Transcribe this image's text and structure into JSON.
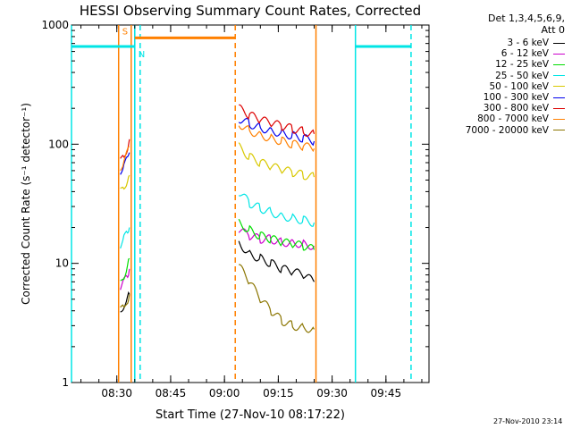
{
  "chart_data": {
    "type": "line",
    "title": "HESSI Observing Summary Count Rates, Corrected",
    "xlabel": "Start Time (27-Nov-10 08:17:22)",
    "ylabel": "Corrected Count Rate (s⁻¹ detector⁻¹)",
    "yscale": "log",
    "ylim": [
      1,
      1000
    ],
    "xlim": [
      "08:17:22",
      "09:57:00"
    ],
    "x_ticks": [
      "08:30",
      "08:45",
      "09:00",
      "09:15",
      "09:30",
      "09:45"
    ],
    "y_ticks": [
      "1",
      "10",
      "100",
      "1000"
    ],
    "legend_header": [
      "Det 1,3,4,5,6,9,",
      "Att 0"
    ],
    "legend_position": "outside-right",
    "grid": false,
    "series": [
      {
        "name": "3 - 6 keV",
        "color": "#000000",
        "segments": [
          {
            "x": [
              "08:31:00",
              "08:32:00",
              "08:33:00",
              "08:33:30"
            ],
            "y": [
              4.0,
              4.5,
              5.0,
              5.5
            ]
          },
          {
            "x": [
              "09:04:00",
              "09:07:00",
              "09:10:00",
              "09:13:00",
              "09:16:00",
              "09:19:00",
              "09:22:00",
              "09:25:00"
            ],
            "y": [
              15,
              12,
              11,
              10,
              9.0,
              8.5,
              8.0,
              7.0
            ]
          }
        ]
      },
      {
        "name": "6 - 12 keV",
        "color": "#cc00cc",
        "segments": [
          {
            "x": [
              "08:31:00",
              "08:32:00",
              "08:33:00",
              "08:33:30"
            ],
            "y": [
              6.0,
              7.0,
              8.0,
              9.0
            ]
          },
          {
            "x": [
              "09:04:00",
              "09:07:00",
              "09:10:00",
              "09:13:00",
              "09:16:00",
              "09:19:00",
              "09:22:00",
              "09:25:00"
            ],
            "y": [
              19,
              17,
              16,
              16,
              15,
              15,
              14.5,
              14
            ]
          }
        ]
      },
      {
        "name": "12 - 25 keV",
        "color": "#00dd00",
        "segments": [
          {
            "x": [
              "08:31:00",
              "08:32:00",
              "08:33:00",
              "08:33:30"
            ],
            "y": [
              7.0,
              8.0,
              9.5,
              11
            ]
          },
          {
            "x": [
              "09:04:00",
              "09:07:00",
              "09:10:00",
              "09:13:00",
              "09:16:00",
              "09:19:00",
              "09:22:00",
              "09:25:00"
            ],
            "y": [
              22,
              19,
              17,
              16,
              15,
              14.5,
              14,
              13
            ]
          }
        ]
      },
      {
        "name": "25 - 50 keV",
        "color": "#00e5e5",
        "segments": [
          {
            "x": [
              "08:31:00",
              "08:32:00",
              "08:33:00",
              "08:33:30"
            ],
            "y": [
              14,
              16,
              18,
              20
            ]
          },
          {
            "x": [
              "09:04:00",
              "09:07:00",
              "09:10:00",
              "09:13:00",
              "09:16:00",
              "09:19:00",
              "09:22:00",
              "09:25:00"
            ],
            "y": [
              40,
              32,
              29,
              27,
              25,
              24,
              23,
              22
            ]
          }
        ]
      },
      {
        "name": "50 - 100 keV",
        "color": "#d8c800",
        "segments": [
          {
            "x": [
              "08:31:00",
              "08:32:00",
              "08:33:00",
              "08:33:30"
            ],
            "y": [
              40,
              45,
              50,
              55
            ]
          },
          {
            "x": [
              "09:04:00",
              "09:07:00",
              "09:10:00",
              "09:13:00",
              "09:16:00",
              "09:19:00",
              "09:22:00",
              "09:25:00"
            ],
            "y": [
              95,
              78,
              70,
              65,
              61,
              58,
              55,
              53
            ]
          }
        ]
      },
      {
        "name": "100 - 300 keV",
        "color": "#0000ee",
        "segments": [
          {
            "x": [
              "08:31:00",
              "08:32:00",
              "08:33:00",
              "08:33:30"
            ],
            "y": [
              60,
              65,
              75,
              85
            ]
          },
          {
            "x": [
              "09:04:00",
              "09:07:00",
              "09:10:00",
              "09:13:00",
              "09:16:00",
              "09:19:00",
              "09:22:00",
              "09:25:00"
            ],
            "y": [
              165,
              148,
              138,
              130,
              124,
              118,
              112,
              106
            ]
          }
        ]
      },
      {
        "name": "300 - 800 keV",
        "color": "#dd0000",
        "segments": [
          {
            "x": [
              "08:31:00",
              "08:32:00",
              "08:33:00",
              "08:33:30"
            ],
            "y": [
              70,
              80,
              95,
              110
            ]
          },
          {
            "x": [
              "09:04:00",
              "09:07:00",
              "09:10:00",
              "09:13:00",
              "09:16:00",
              "09:19:00",
              "09:22:00",
              "09:25:00"
            ],
            "y": [
              200,
              175,
              160,
              150,
              142,
              135,
              128,
              122
            ]
          }
        ]
      },
      {
        "name": "800 - 7000 keV",
        "color": "#ff8000",
        "segments": [
          {
            "x": [
              "08:31:00",
              "08:32:00",
              "08:33:00",
              "08:33:30"
            ],
            "y": [
              65,
              72,
              85,
              95
            ]
          },
          {
            "x": [
              "09:04:00",
              "09:07:00",
              "09:10:00",
              "09:13:00",
              "09:16:00",
              "09:19:00",
              "09:22:00",
              "09:25:00"
            ],
            "y": [
              150,
              130,
              120,
              112,
              106,
              100,
              96,
              92
            ]
          }
        ]
      },
      {
        "name": "7000 - 20000 keV",
        "color": "#8b7500",
        "segments": [
          {
            "x": [
              "08:31:00",
              "08:32:00",
              "08:33:00",
              "08:33:30"
            ],
            "y": [
              4.0,
              4.2,
              5.0,
              5.5
            ]
          },
          {
            "x": [
              "09:04:00",
              "09:07:00",
              "09:10:00",
              "09:13:00",
              "09:16:00",
              "09:19:00",
              "09:22:00",
              "09:25:00"
            ],
            "y": [
              9.5,
              7.0,
              5.0,
              4.0,
              3.3,
              3.0,
              2.9,
              2.8
            ]
          }
        ]
      }
    ],
    "annotations": [
      {
        "label": "S",
        "color": "#ff8000",
        "x_start": "08:35:00",
        "x_end": "09:03:00",
        "y": 780
      },
      {
        "label": "N",
        "color": "#00e5e5",
        "x_start": "08:17:22",
        "x_end": "08:35:00",
        "y": 660
      },
      {
        "label": "",
        "color": "#00e5e5",
        "x_start": "09:36:30",
        "x_end": "09:52:00",
        "y": 660
      }
    ],
    "vlines": [
      {
        "x": "08:17:22",
        "color": "#00e5e5",
        "style": "solid"
      },
      {
        "x": "08:35:00",
        "color": "#00e5e5",
        "style": "solid"
      },
      {
        "x": "08:36:30",
        "color": "#00e5e5",
        "style": "dashed"
      },
      {
        "x": "09:36:30",
        "color": "#00e5e5",
        "style": "solid"
      },
      {
        "x": "09:52:00",
        "color": "#00e5e5",
        "style": "dashed"
      },
      {
        "x": "08:30:30",
        "color": "#ff8000",
        "style": "solid"
      },
      {
        "x": "08:34:00",
        "color": "#ff8000",
        "style": "solid"
      },
      {
        "x": "09:03:00",
        "color": "#ff8000",
        "style": "dashed"
      },
      {
        "x": "09:25:30",
        "color": "#ff8000",
        "style": "solid"
      }
    ],
    "colors": {
      "frame": "#000000",
      "background": "#ffffff"
    }
  },
  "footer_stamp": "27-Nov-2010 23:14"
}
